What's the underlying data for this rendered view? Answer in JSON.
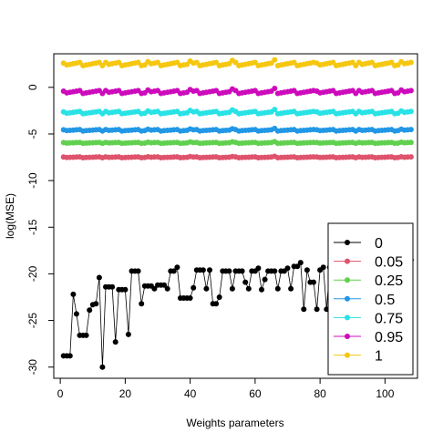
{
  "chart_data": {
    "type": "line",
    "title": "",
    "xlabel": "Weights parameters",
    "ylabel": "log(MSE)",
    "xlim": [
      -2,
      110
    ],
    "ylim": [
      -31.2,
      3.6
    ],
    "x_ticks": [
      0,
      20,
      40,
      60,
      80,
      100
    ],
    "y_ticks": [
      -30,
      -25,
      -20,
      -15,
      -10,
      -5,
      0
    ],
    "grid": false,
    "legend_position": "bottom-right",
    "x": [
      1,
      2,
      3,
      4,
      5,
      6,
      7,
      8,
      9,
      10,
      11,
      12,
      13,
      14,
      15,
      16,
      17,
      18,
      19,
      20,
      21,
      22,
      23,
      24,
      25,
      26,
      27,
      28,
      29,
      30,
      31,
      32,
      33,
      34,
      35,
      36,
      37,
      38,
      39,
      40,
      41,
      42,
      43,
      44,
      45,
      46,
      47,
      48,
      49,
      50,
      51,
      52,
      53,
      54,
      55,
      56,
      57,
      58,
      59,
      60,
      61,
      62,
      63,
      64,
      65,
      66,
      67,
      68,
      69,
      70,
      71,
      72,
      73,
      74,
      75,
      76,
      77,
      78,
      79,
      80,
      81,
      82,
      83,
      84,
      85,
      86,
      87,
      88,
      89,
      90,
      91,
      92,
      93,
      94,
      95,
      96,
      97,
      98,
      99,
      100,
      101,
      102,
      103,
      104,
      105,
      106,
      107,
      108
    ],
    "series": [
      {
        "name": "0",
        "color": "#000000",
        "line": true,
        "values": [
          -28.8,
          -28.8,
          -28.8,
          -22.2,
          -24.3,
          -26.6,
          -26.6,
          -26.6,
          -23.9,
          -23.3,
          -23.2,
          -20.4,
          -30.0,
          -21.4,
          -21.4,
          -21.4,
          -27.3,
          -21.7,
          -21.7,
          -21.7,
          -26.5,
          -19.7,
          -19.7,
          -19.7,
          -23.2,
          -21.3,
          -21.3,
          -21.3,
          -21.6,
          -21.2,
          -21.2,
          -21.2,
          -21.6,
          -19.7,
          -19.7,
          -19.3,
          -22.6,
          -22.6,
          -22.6,
          -22.6,
          -21.5,
          -19.6,
          -19.6,
          -19.6,
          -21.6,
          -19.6,
          -23.2,
          -23.2,
          -22.5,
          -19.7,
          -19.7,
          -19.7,
          -21.6,
          -19.7,
          -19.7,
          -19.7,
          -20.9,
          -21.6,
          -19.7,
          -19.7,
          -19.4,
          -21.7,
          -20.6,
          -19.7,
          -19.7,
          -19.7,
          -21.6,
          -19.7,
          -19.7,
          -19.4,
          -21.6,
          -19.2,
          -19.2,
          -18.8,
          -23.8,
          -19.6,
          -20.9,
          -20.9,
          -23.8,
          -19.6,
          -19.3,
          -23.8,
          -19.3,
          -19.6,
          -23.8,
          -19.6,
          -19.6,
          -23.8,
          -19.6,
          -19.6,
          -23.8,
          -19.6,
          -19.3,
          -23.8,
          -19.6,
          -19.6,
          -23.8,
          -19.4,
          -19.4,
          -23.8,
          -19.4,
          -19.4,
          -23.8,
          -19.4,
          -24.2,
          -23.8,
          -19.6,
          -18.5
        ]
      },
      {
        "name": "0.05",
        "color": "#DF536B",
        "line": false,
        "base": -7.5,
        "wave": 0.08
      },
      {
        "name": "0.25",
        "color": "#61D04F",
        "line": false,
        "base": -5.95,
        "wave": 0.1
      },
      {
        "name": "0.5",
        "color": "#2297E6",
        "line": false,
        "base": -4.6,
        "wave": 0.15
      },
      {
        "name": "0.75",
        "color": "#28E2E5",
        "line": false,
        "base": -2.7,
        "wave": 0.25
      },
      {
        "name": "0.95",
        "color": "#CD0BBC",
        "line": false,
        "base": -0.5,
        "wave": 0.3
      },
      {
        "name": "1",
        "color": "#F5C710",
        "line": false,
        "base": 2.5,
        "wave": 0.35
      }
    ]
  }
}
